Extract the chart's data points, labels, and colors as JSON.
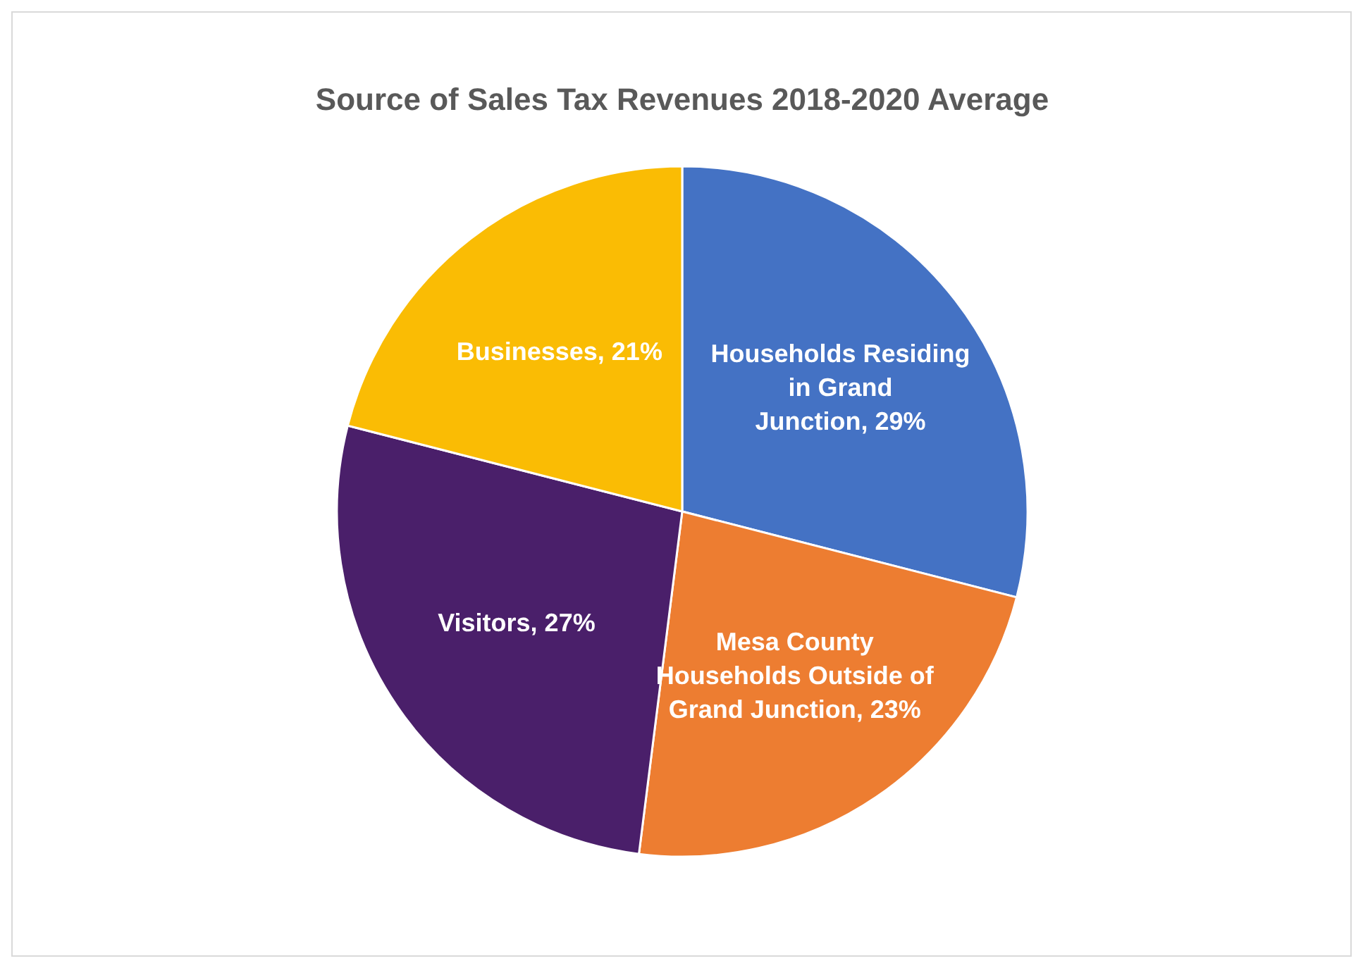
{
  "chart_data": {
    "type": "pie",
    "title": "Source of Sales Tax Revenues 2018-2020 Average",
    "categories": [
      "Households Residing in Grand Junction",
      "Mesa County Households Outside of Grand Junction",
      "Visitors",
      "Businesses"
    ],
    "values": [
      29,
      23,
      27,
      21
    ],
    "colors": [
      "#4472c4",
      "#ed7d31",
      "#4a1f6a",
      "#fabc04"
    ],
    "value_labels": [
      "29%",
      "23%",
      "27%",
      "21%"
    ]
  }
}
